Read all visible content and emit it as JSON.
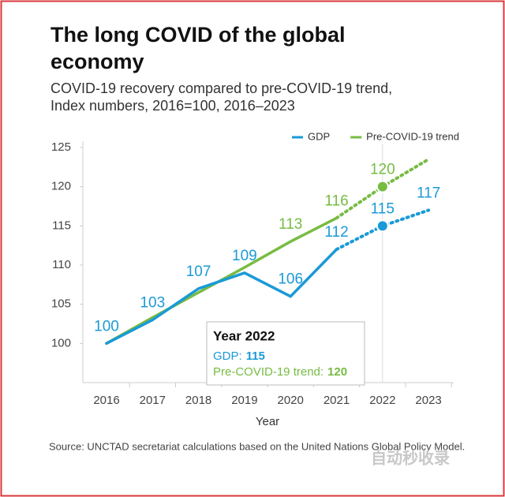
{
  "chart_data": {
    "type": "line",
    "title": [
      "The long COVID of the global",
      "economy"
    ],
    "subtitle": [
      "COVID-19 recovery compared to pre-COVID-19 trend,",
      "Index numbers, 2016=100, 2016–2023"
    ],
    "x_label": "Year",
    "categories": [
      "2016",
      "2017",
      "2018",
      "2019",
      "2020",
      "2021",
      "2022",
      "2023"
    ],
    "series": [
      {
        "name": "GDP",
        "color": "#1a9ad6",
        "values": [
          100,
          103,
          107,
          109,
          106,
          112,
          115,
          117
        ]
      },
      {
        "name": "Pre-COVID-19 trend",
        "color": "#77bc43",
        "values": [
          100,
          103.3,
          106.5,
          109.7,
          113,
          116,
          120,
          123.5
        ],
        "value_labels": [
          null,
          null,
          null,
          null,
          "113",
          "116",
          "120",
          null
        ]
      }
    ],
    "projection_start": "2021",
    "ylim": [
      95,
      125
    ],
    "yticks": [
      100,
      105,
      110,
      115,
      120,
      125
    ],
    "legend": "top-right",
    "tooltip": {
      "title": "Year 2022",
      "category": "2022",
      "items": [
        {
          "label": "GDP:",
          "value": "115"
        },
        {
          "label": "Pre-COVID-19 trend:",
          "value": "120"
        }
      ]
    },
    "source": "Source: UNCTAD secretariat calculations based on the United Nations Global Policy Model.",
    "watermark": "自动秒收录"
  }
}
